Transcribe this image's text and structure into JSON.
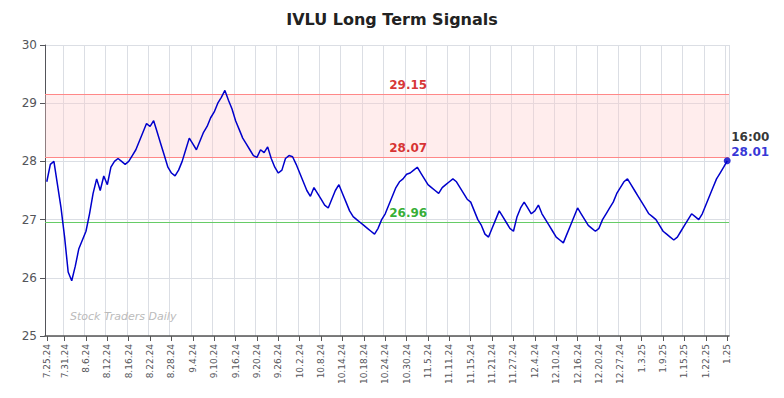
{
  "chart_data": {
    "type": "line",
    "title": "IVLU Long Term Signals",
    "color": "#0000cc",
    "ylim": [
      25.0,
      30.0
    ],
    "yticks": [
      25,
      26,
      27,
      28,
      29,
      30
    ],
    "grid": true,
    "categories": [
      "7.25.24",
      null,
      null,
      null,
      null,
      "7.31.24",
      null,
      null,
      null,
      null,
      null,
      "8.6.24",
      null,
      null,
      null,
      null,
      null,
      "8.12.24",
      null,
      null,
      null,
      null,
      null,
      "8.16.24",
      null,
      null,
      null,
      null,
      null,
      "8.22.24",
      null,
      null,
      null,
      null,
      null,
      "8.28.24",
      null,
      null,
      null,
      null,
      null,
      "9.4.24",
      null,
      null,
      null,
      null,
      null,
      "9.10.24",
      null,
      null,
      null,
      null,
      null,
      "9.16.24",
      null,
      null,
      null,
      null,
      null,
      "9.20.24",
      null,
      null,
      null,
      null,
      null,
      "9.26.24",
      null,
      null,
      null,
      null,
      null,
      "10.2.24",
      null,
      null,
      null,
      null,
      null,
      "10.8.24",
      null,
      null,
      null,
      null,
      null,
      "10.14.24",
      null,
      null,
      null,
      null,
      null,
      "10.18.24",
      null,
      null,
      null,
      null,
      null,
      "10.24.24",
      null,
      null,
      null,
      null,
      null,
      "10.30.24",
      null,
      null,
      null,
      null,
      null,
      "11.5.24",
      null,
      null,
      null,
      null,
      null,
      "11.11.24",
      null,
      null,
      null,
      null,
      null,
      "11.15.24",
      null,
      null,
      null,
      null,
      null,
      "11.21.24",
      null,
      null,
      null,
      null,
      null,
      "11.27.24",
      null,
      null,
      null,
      null,
      null,
      "12.4.24",
      null,
      null,
      null,
      null,
      null,
      "12.10.24",
      null,
      null,
      null,
      null,
      null,
      "12.16.24",
      null,
      null,
      null,
      null,
      null,
      "12.20.24",
      null,
      null,
      null,
      null,
      null,
      "12.27.24",
      null,
      null,
      null,
      null,
      null,
      "1.3.25",
      null,
      null,
      null,
      null,
      null,
      "1.9.25",
      null,
      null,
      null,
      null,
      null,
      "1.15.25",
      null,
      null,
      null,
      null,
      null,
      "1.22.25",
      null,
      null,
      null,
      null,
      null,
      "1.25"
    ],
    "values": [
      27.65,
      27.95,
      28.0,
      27.6,
      27.2,
      26.7,
      26.1,
      25.95,
      26.2,
      26.5,
      26.65,
      26.8,
      27.1,
      27.45,
      27.7,
      27.5,
      27.75,
      27.6,
      27.9,
      28.0,
      28.05,
      28.0,
      27.95,
      28.0,
      28.1,
      28.2,
      28.35,
      28.5,
      28.65,
      28.6,
      28.7,
      28.5,
      28.3,
      28.1,
      27.9,
      27.8,
      27.75,
      27.85,
      28.0,
      28.2,
      28.4,
      28.3,
      28.2,
      28.35,
      28.5,
      28.6,
      28.75,
      28.85,
      29.0,
      29.1,
      29.22,
      29.05,
      28.9,
      28.7,
      28.55,
      28.4,
      28.3,
      28.2,
      28.1,
      28.07,
      28.2,
      28.15,
      28.25,
      28.05,
      27.9,
      27.8,
      27.85,
      28.05,
      28.1,
      28.08,
      27.95,
      27.8,
      27.65,
      27.5,
      27.4,
      27.55,
      27.45,
      27.35,
      27.25,
      27.2,
      27.35,
      27.5,
      27.6,
      27.45,
      27.3,
      27.15,
      27.05,
      27.0,
      26.95,
      26.9,
      26.85,
      26.8,
      26.75,
      26.85,
      27.0,
      27.1,
      27.25,
      27.4,
      27.55,
      27.65,
      27.7,
      27.78,
      27.8,
      27.85,
      27.9,
      27.8,
      27.7,
      27.6,
      27.55,
      27.5,
      27.45,
      27.55,
      27.6,
      27.65,
      27.7,
      27.65,
      27.55,
      27.45,
      27.35,
      27.3,
      27.15,
      27.0,
      26.9,
      26.75,
      26.7,
      26.85,
      27.0,
      27.15,
      27.05,
      26.95,
      26.85,
      26.8,
      27.05,
      27.2,
      27.3,
      27.2,
      27.1,
      27.15,
      27.25,
      27.1,
      27.0,
      26.9,
      26.8,
      26.7,
      26.65,
      26.6,
      26.75,
      26.9,
      27.05,
      27.2,
      27.1,
      27.0,
      26.9,
      26.85,
      26.8,
      26.85,
      27.0,
      27.1,
      27.2,
      27.3,
      27.45,
      27.55,
      27.65,
      27.7,
      27.6,
      27.5,
      27.4,
      27.3,
      27.2,
      27.1,
      27.05,
      27.0,
      26.9,
      26.8,
      26.75,
      26.7,
      26.65,
      26.7,
      26.8,
      26.9,
      27.0,
      27.1,
      27.05,
      27.0,
      27.1,
      27.25,
      27.4,
      27.55,
      27.7,
      27.8,
      27.9,
      28.01
    ],
    "hlines": [
      {
        "value": 29.15,
        "color": "#ff8888"
      },
      {
        "value": 28.07,
        "color": "#ff8888"
      },
      {
        "value": 26.96,
        "color": "#66cc66"
      }
    ],
    "band": {
      "from": 28.07,
      "to": 29.15,
      "color": "#ffcccc"
    },
    "annotations": [
      {
        "text": "29.15",
        "color": "#cc0000",
        "x": "10.24.24",
        "y": 29.15
      },
      {
        "text": "28.07",
        "color": "#cc0000",
        "x": "10.24.24",
        "y": 28.07
      },
      {
        "text": "26.96",
        "color": "#009900",
        "x": "10.24.24",
        "y": 26.96
      },
      {
        "text": "16:00",
        "color": "#000000",
        "x": "1.25",
        "y": 28.01
      },
      {
        "text": "28.01",
        "color": "#0000cc",
        "x": "1.25",
        "y": 28.01
      },
      {
        "text": "Stock Traders Daily",
        "color": "#bbbbbb"
      }
    ]
  }
}
